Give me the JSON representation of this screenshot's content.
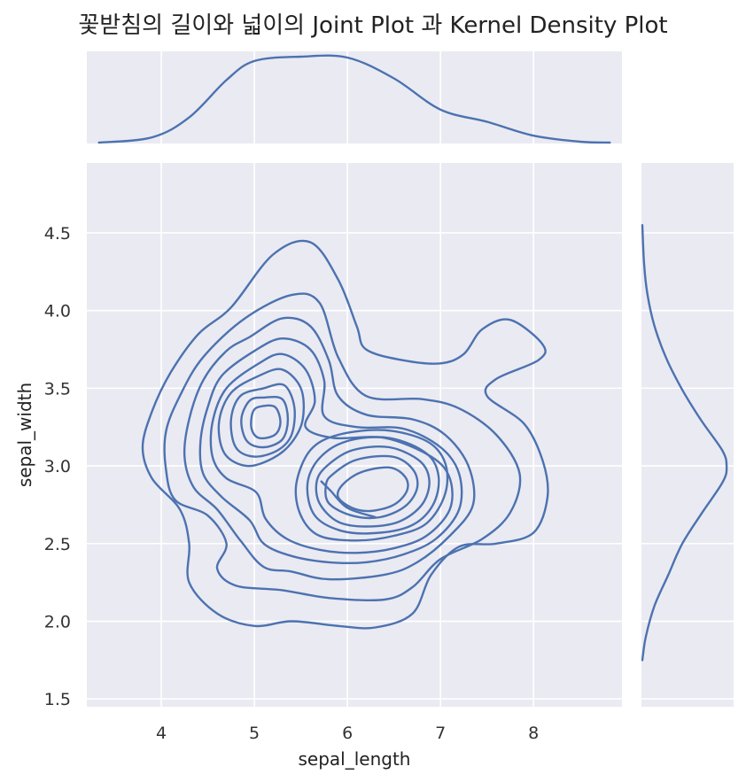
{
  "chart_data": {
    "type": "kde_joint",
    "title": "꽃받침의 길이와 넓이의 Joint Plot 과 Kernel Density Plot",
    "xlabel": "sepal_length",
    "ylabel": "sepal_width",
    "xlim": [
      3.2,
      8.95
    ],
    "ylim": [
      1.45,
      4.95
    ],
    "xticks": [
      4,
      5,
      6,
      7,
      8
    ],
    "yticks": [
      1.5,
      2.0,
      2.5,
      3.0,
      3.5,
      4.0,
      4.5
    ],
    "xtick_labels": [
      "4",
      "5",
      "6",
      "7",
      "8"
    ],
    "ytick_labels": [
      "1.5",
      "2.0",
      "2.5",
      "3.0",
      "3.5",
      "4.0",
      "4.5"
    ],
    "grid": true,
    "color": "#4c72b0",
    "panel_color": "#eaeaf2",
    "marginal_x": {
      "x": [
        3.33,
        3.9,
        4.3,
        4.7,
        5.0,
        5.5,
        6.0,
        6.5,
        7.0,
        7.5,
        8.0,
        8.5,
        8.82
      ],
      "density": [
        0.0,
        0.06,
        0.29,
        0.72,
        0.94,
        0.99,
        0.98,
        0.74,
        0.38,
        0.24,
        0.08,
        0.01,
        0.0
      ]
    },
    "marginal_y": {
      "y": [
        1.75,
        1.9,
        2.1,
        2.3,
        2.5,
        2.7,
        2.9,
        3.0,
        3.1,
        3.3,
        3.5,
        3.7,
        3.9,
        4.1,
        4.3,
        4.55
      ],
      "density": [
        0.0,
        0.04,
        0.14,
        0.3,
        0.46,
        0.69,
        0.93,
        0.97,
        0.92,
        0.67,
        0.45,
        0.27,
        0.14,
        0.06,
        0.02,
        0.0
      ]
    },
    "contours": [
      [
        [
          4.75,
          4.02
        ],
        [
          5.2,
          4.36
        ],
        [
          5.6,
          4.44
        ],
        [
          5.9,
          4.2
        ],
        [
          6.1,
          3.9
        ],
        [
          6.2,
          3.75
        ],
        [
          6.6,
          3.68
        ],
        [
          7.0,
          3.66
        ],
        [
          7.25,
          3.72
        ],
        [
          7.45,
          3.88
        ],
        [
          7.75,
          3.94
        ],
        [
          8.1,
          3.78
        ],
        [
          8.05,
          3.68
        ],
        [
          7.6,
          3.56
        ],
        [
          7.5,
          3.45
        ],
        [
          7.9,
          3.27
        ],
        [
          8.1,
          3.03
        ],
        [
          8.15,
          2.8
        ],
        [
          8.0,
          2.57
        ],
        [
          7.6,
          2.5
        ],
        [
          7.2,
          2.48
        ],
        [
          6.9,
          2.3
        ],
        [
          6.7,
          2.05
        ],
        [
          6.3,
          1.96
        ],
        [
          5.9,
          1.97
        ],
        [
          5.4,
          2.0
        ],
        [
          5.0,
          1.97
        ],
        [
          4.6,
          2.05
        ],
        [
          4.3,
          2.25
        ],
        [
          4.3,
          2.5
        ],
        [
          4.2,
          2.72
        ],
        [
          3.9,
          2.92
        ],
        [
          3.8,
          3.12
        ],
        [
          3.9,
          3.35
        ],
        [
          4.1,
          3.6
        ],
        [
          4.4,
          3.85
        ],
        [
          4.75,
          4.02
        ]
      ],
      [
        [
          4.9,
          3.95
        ],
        [
          5.4,
          4.1
        ],
        [
          5.7,
          4.05
        ],
        [
          5.9,
          3.7
        ],
        [
          6.2,
          3.45
        ],
        [
          6.8,
          3.43
        ],
        [
          7.2,
          3.37
        ],
        [
          7.6,
          3.2
        ],
        [
          7.85,
          2.95
        ],
        [
          7.75,
          2.7
        ],
        [
          7.45,
          2.53
        ],
        [
          7.0,
          2.4
        ],
        [
          6.7,
          2.22
        ],
        [
          6.4,
          2.14
        ],
        [
          5.8,
          2.15
        ],
        [
          5.3,
          2.2
        ],
        [
          4.8,
          2.23
        ],
        [
          4.6,
          2.34
        ],
        [
          4.7,
          2.5
        ],
        [
          4.5,
          2.68
        ],
        [
          4.15,
          2.78
        ],
        [
          4.05,
          2.98
        ],
        [
          4.05,
          3.22
        ],
        [
          4.2,
          3.45
        ],
        [
          4.45,
          3.7
        ],
        [
          4.9,
          3.95
        ]
      ],
      [
        [
          4.95,
          3.83
        ],
        [
          5.3,
          3.95
        ],
        [
          5.6,
          3.9
        ],
        [
          5.8,
          3.68
        ],
        [
          5.9,
          3.45
        ],
        [
          6.2,
          3.33
        ],
        [
          6.7,
          3.3
        ],
        [
          7.05,
          3.2
        ],
        [
          7.3,
          3.0
        ],
        [
          7.35,
          2.75
        ],
        [
          7.1,
          2.55
        ],
        [
          6.75,
          2.38
        ],
        [
          6.4,
          2.3
        ],
        [
          5.8,
          2.27
        ],
        [
          5.4,
          2.32
        ],
        [
          5.1,
          2.35
        ],
        [
          4.85,
          2.52
        ],
        [
          4.6,
          2.72
        ],
        [
          4.35,
          2.86
        ],
        [
          4.25,
          3.06
        ],
        [
          4.3,
          3.3
        ],
        [
          4.45,
          3.55
        ],
        [
          4.7,
          3.74
        ],
        [
          4.95,
          3.83
        ]
      ],
      [
        [
          5.0,
          3.74
        ],
        [
          5.3,
          3.82
        ],
        [
          5.6,
          3.75
        ],
        [
          5.75,
          3.55
        ],
        [
          5.75,
          3.32
        ],
        [
          6.1,
          3.25
        ],
        [
          6.6,
          3.24
        ],
        [
          7.0,
          3.12
        ],
        [
          7.2,
          2.95
        ],
        [
          7.2,
          2.72
        ],
        [
          6.95,
          2.53
        ],
        [
          6.6,
          2.43
        ],
        [
          6.2,
          2.38
        ],
        [
          5.8,
          2.38
        ],
        [
          5.4,
          2.42
        ],
        [
          5.1,
          2.5
        ],
        [
          4.95,
          2.65
        ],
        [
          4.65,
          2.8
        ],
        [
          4.45,
          2.95
        ],
        [
          4.42,
          3.15
        ],
        [
          4.5,
          3.38
        ],
        [
          4.65,
          3.58
        ],
        [
          5.0,
          3.74
        ]
      ],
      [
        [
          5.05,
          3.66
        ],
        [
          5.3,
          3.72
        ],
        [
          5.55,
          3.62
        ],
        [
          5.65,
          3.42
        ],
        [
          5.55,
          3.25
        ],
        [
          5.85,
          3.18
        ],
        [
          6.4,
          3.18
        ],
        [
          6.9,
          3.06
        ],
        [
          7.1,
          2.92
        ],
        [
          7.1,
          2.72
        ],
        [
          6.85,
          2.55
        ],
        [
          6.5,
          2.47
        ],
        [
          6.1,
          2.44
        ],
        [
          5.7,
          2.46
        ],
        [
          5.35,
          2.53
        ],
        [
          5.12,
          2.66
        ],
        [
          5.02,
          2.83
        ],
        [
          4.7,
          2.92
        ],
        [
          4.55,
          3.06
        ],
        [
          4.55,
          3.28
        ],
        [
          4.7,
          3.5
        ],
        [
          5.05,
          3.66
        ]
      ],
      [
        [
          5.05,
          3.58
        ],
        [
          5.3,
          3.62
        ],
        [
          5.5,
          3.5
        ],
        [
          5.52,
          3.3
        ],
        [
          5.4,
          3.15
        ],
        [
          5.2,
          3.05
        ],
        [
          4.92,
          3.0
        ],
        [
          4.68,
          3.08
        ],
        [
          4.62,
          3.28
        ],
        [
          4.75,
          3.47
        ],
        [
          5.05,
          3.58
        ]
      ],
      [
        [
          5.1,
          3.5
        ],
        [
          5.32,
          3.52
        ],
        [
          5.43,
          3.38
        ],
        [
          5.4,
          3.2
        ],
        [
          5.25,
          3.1
        ],
        [
          5.0,
          3.06
        ],
        [
          4.8,
          3.12
        ],
        [
          4.75,
          3.3
        ],
        [
          4.85,
          3.45
        ],
        [
          5.1,
          3.5
        ]
      ],
      [
        [
          5.1,
          3.44
        ],
        [
          5.3,
          3.43
        ],
        [
          5.36,
          3.3
        ],
        [
          5.3,
          3.17
        ],
        [
          5.1,
          3.12
        ],
        [
          4.92,
          3.16
        ],
        [
          4.86,
          3.3
        ],
        [
          4.95,
          3.42
        ],
        [
          5.1,
          3.44
        ]
      ],
      [
        [
          5.05,
          3.38
        ],
        [
          5.22,
          3.38
        ],
        [
          5.28,
          3.28
        ],
        [
          5.22,
          3.2
        ],
        [
          5.05,
          3.18
        ],
        [
          4.97,
          3.24
        ],
        [
          4.98,
          3.34
        ],
        [
          5.05,
          3.38
        ]
      ],
      [
        [
          5.6,
          3.1
        ],
        [
          5.9,
          3.2
        ],
        [
          6.4,
          3.23
        ],
        [
          6.85,
          3.16
        ],
        [
          7.05,
          3.02
        ],
        [
          7.05,
          2.82
        ],
        [
          6.85,
          2.63
        ],
        [
          6.5,
          2.55
        ],
        [
          6.1,
          2.52
        ],
        [
          5.7,
          2.55
        ],
        [
          5.5,
          2.68
        ],
        [
          5.45,
          2.88
        ],
        [
          5.6,
          3.1
        ]
      ],
      [
        [
          5.7,
          3.05
        ],
        [
          6.0,
          3.16
        ],
        [
          6.45,
          3.18
        ],
        [
          6.85,
          3.08
        ],
        [
          6.98,
          2.93
        ],
        [
          6.92,
          2.75
        ],
        [
          6.7,
          2.62
        ],
        [
          6.35,
          2.57
        ],
        [
          5.95,
          2.58
        ],
        [
          5.65,
          2.68
        ],
        [
          5.57,
          2.88
        ],
        [
          5.7,
          3.05
        ]
      ],
      [
        [
          5.78,
          3.0
        ],
        [
          6.05,
          3.1
        ],
        [
          6.45,
          3.12
        ],
        [
          6.78,
          3.03
        ],
        [
          6.88,
          2.9
        ],
        [
          6.8,
          2.75
        ],
        [
          6.55,
          2.64
        ],
        [
          6.2,
          2.61
        ],
        [
          5.9,
          2.64
        ],
        [
          5.7,
          2.76
        ],
        [
          5.67,
          2.9
        ],
        [
          5.78,
          3.0
        ]
      ],
      [
        [
          5.85,
          2.95
        ],
        [
          6.1,
          3.04
        ],
        [
          6.48,
          3.06
        ],
        [
          6.7,
          2.98
        ],
        [
          6.75,
          2.86
        ],
        [
          6.62,
          2.74
        ],
        [
          6.35,
          2.67
        ],
        [
          6.05,
          2.68
        ],
        [
          5.8,
          2.76
        ],
        [
          5.77,
          2.88
        ],
        [
          5.85,
          2.95
        ]
      ],
      [
        [
          5.95,
          2.88
        ],
        [
          6.15,
          2.96
        ],
        [
          6.45,
          2.99
        ],
        [
          6.62,
          2.93
        ],
        [
          6.64,
          2.84
        ],
        [
          6.5,
          2.75
        ],
        [
          6.25,
          2.71
        ],
        [
          6.05,
          2.73
        ],
        [
          5.9,
          2.8
        ],
        [
          5.95,
          2.88
        ]
      ],
      [
        [
          5.72,
          2.9
        ],
        [
          5.82,
          2.84
        ],
        [
          6.0,
          2.73
        ],
        [
          6.3,
          2.67
        ]
      ]
    ]
  }
}
